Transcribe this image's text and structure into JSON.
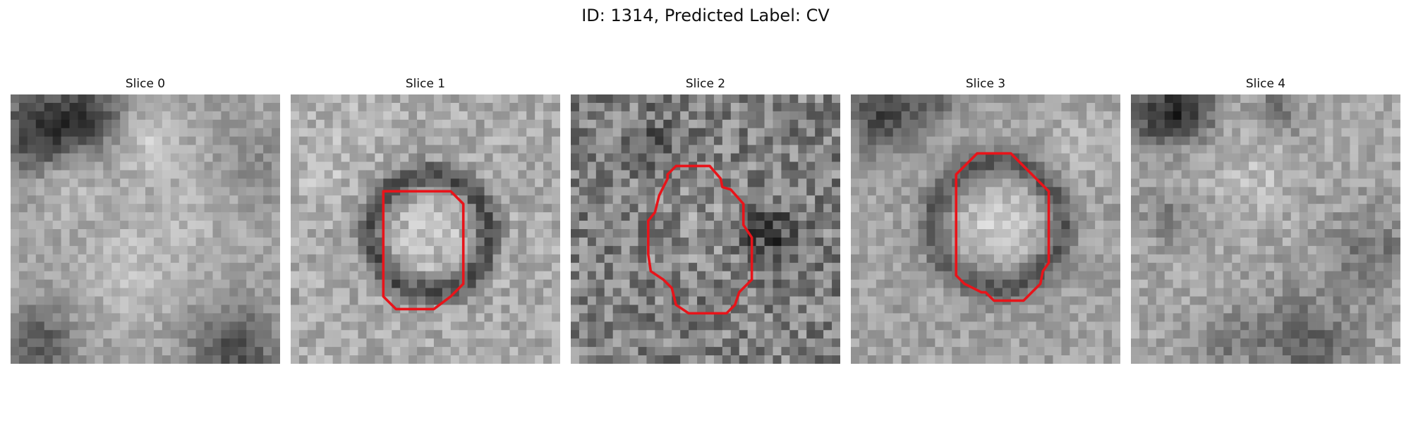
{
  "figure": {
    "title": "ID: 1314, Predicted Label: CV",
    "panels": [
      {
        "title": "Slice 0",
        "has_contour": false
      },
      {
        "title": "Slice 1",
        "has_contour": true
      },
      {
        "title": "Slice 2",
        "has_contour": true
      },
      {
        "title": "Slice 3",
        "has_contour": true
      },
      {
        "title": "Slice 4",
        "has_contour": false
      }
    ]
  },
  "colors": {
    "contour": "#e8141a"
  }
}
